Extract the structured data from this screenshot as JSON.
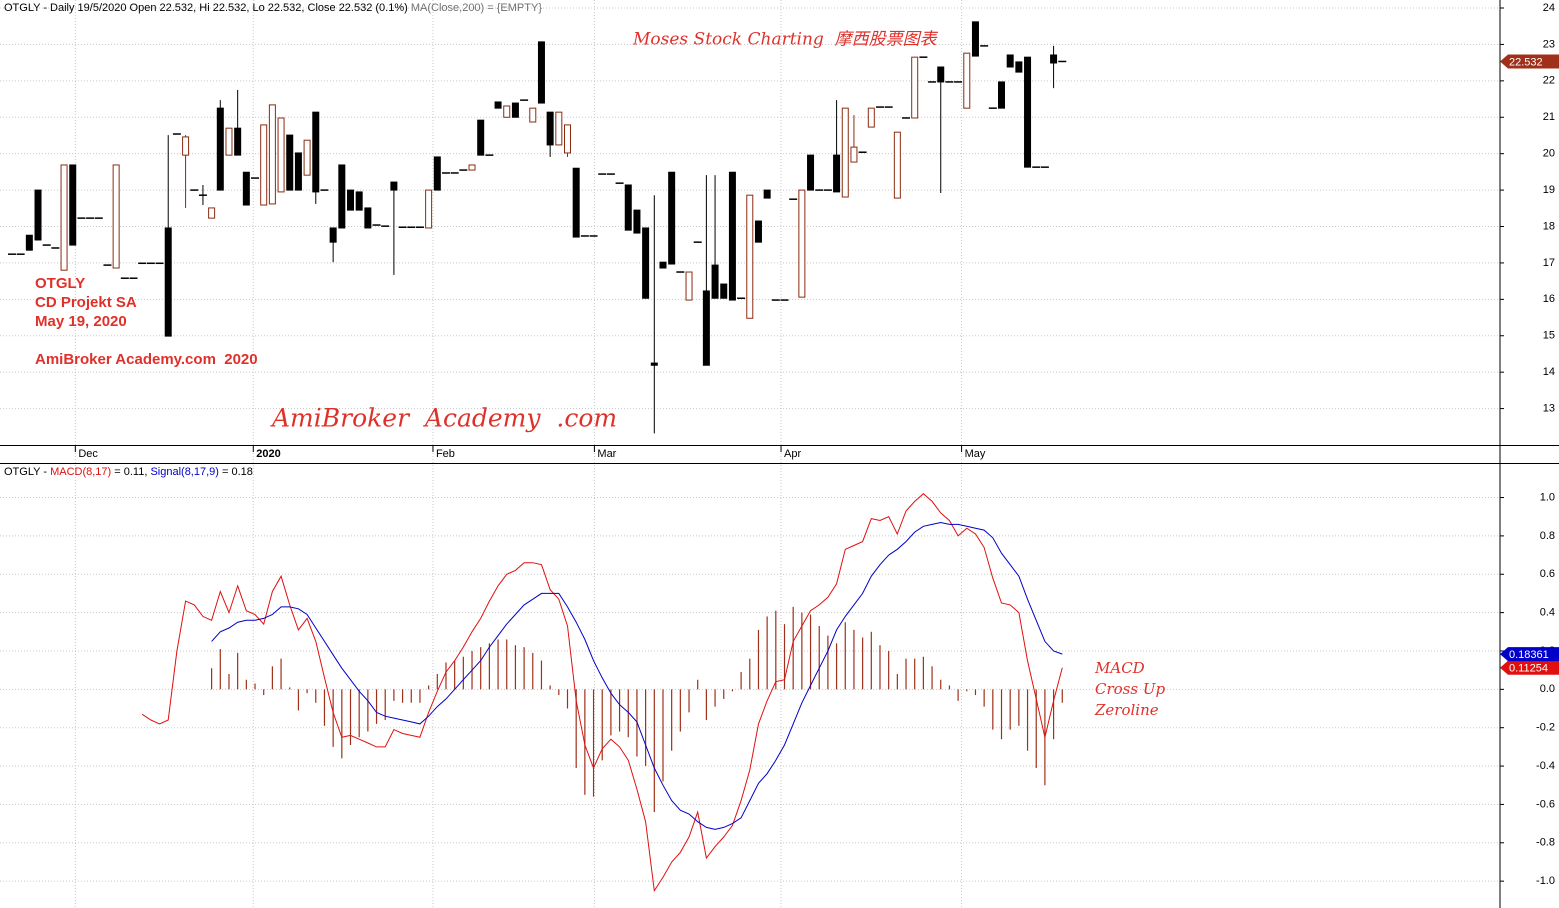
{
  "chart_data": [
    {
      "type": "candlestick",
      "title": "OTGLY - Daily 19/5/2020 Open 22.532, Hi 22.532, Lo 22.532, Close 22.532 (0.1%)",
      "subtitle": "MA(Close,200) = {EMPTY}",
      "annotations": [
        "Moses Stock Charting  摩西股票图表",
        "OTGLY",
        "CD Projekt SA",
        "May 19, 2020",
        "AmiBroker Academy.com  2020",
        "AmiBroker  Academy  .com"
      ],
      "up_color": "#8b2b10",
      "down_color": "#000000",
      "label_color": "#a0301a",
      "xlim": [
        -1.38,
        171.43
      ],
      "xticks": [
        {
          "value": 7.3,
          "label": "Dec"
        },
        {
          "value": 27.8,
          "label": "2020"
        },
        {
          "value": 48.5,
          "label": "Feb"
        },
        {
          "value": 67.1,
          "label": "Mar"
        },
        {
          "value": 88.6,
          "label": "Apr"
        },
        {
          "value": 109.4,
          "label": "May"
        }
      ],
      "ylim": [
        12,
        24.22
      ],
      "yticks": [
        13,
        14,
        15,
        16,
        17,
        18,
        19,
        20,
        21,
        22,
        23,
        24
      ],
      "grid": true,
      "open": [
        17.24,
        17.24,
        17.76,
        19.0,
        17.49,
        17.41,
        16.8,
        19.69,
        18.23,
        18.23,
        18.23,
        16.94,
        16.86,
        16.58,
        16.58,
        16.99,
        16.99,
        16.99,
        17.96,
        20.54,
        19.96,
        19.0,
        18.86,
        18.23,
        21.25,
        19.96,
        20.7,
        19.49,
        19.33,
        18.59,
        18.62,
        18.95,
        20.51,
        20.02,
        19.41,
        21.14,
        19.0,
        17.96,
        19.69,
        19.0,
        18.95,
        18.51,
        18.04,
        18.01,
        19.22,
        17.98,
        17.98,
        17.98,
        17.96,
        19.91,
        19.47,
        19.47,
        19.55,
        19.55,
        20.92,
        19.96,
        21.42,
        21.0,
        21.39,
        21.47,
        20.87,
        23.07,
        21.14,
        20.24,
        20.02,
        19.6,
        17.74,
        17.74,
        19.44,
        19.44,
        19.19,
        19.14,
        18.45,
        17.96,
        14.25,
        17.02,
        19.49,
        16.75,
        15.98,
        17.57,
        16.23,
        16.94,
        16.42,
        19.49,
        16.03,
        15.48,
        18.15,
        19.0,
        15.98,
        15.98,
        18.75,
        16.06,
        19.96,
        19.0,
        19.0,
        19.96,
        18.81,
        19.77,
        20.04,
        20.73,
        21.28,
        21.28,
        18.78,
        20.98,
        20.98,
        22.65,
        21.97,
        22.38,
        21.97,
        21.97,
        21.25,
        23.62,
        22.96,
        21.25,
        21.97,
        22.71,
        22.52,
        22.65,
        19.63,
        19.63,
        22.71,
        22.532
      ],
      "high": [
        17.24,
        17.24,
        17.76,
        19.0,
        17.49,
        17.41,
        19.69,
        19.69,
        18.23,
        18.23,
        18.23,
        16.94,
        19.69,
        16.58,
        16.58,
        16.99,
        16.99,
        16.99,
        20.51,
        20.54,
        20.51,
        19.0,
        19.14,
        18.51,
        21.47,
        20.7,
        21.75,
        19.49,
        19.33,
        20.79,
        21.34,
        20.98,
        20.51,
        20.02,
        20.37,
        21.14,
        19.0,
        17.96,
        19.69,
        19.0,
        18.95,
        18.51,
        18.04,
        18.01,
        19.22,
        17.98,
        17.98,
        17.98,
        19.0,
        19.91,
        19.47,
        19.47,
        19.55,
        19.69,
        20.92,
        19.96,
        21.42,
        21.31,
        21.39,
        21.47,
        21.25,
        23.07,
        21.14,
        21.14,
        20.79,
        19.6,
        17.74,
        17.74,
        19.44,
        19.44,
        19.19,
        19.14,
        18.45,
        17.96,
        18.86,
        17.02,
        19.49,
        16.75,
        16.75,
        17.57,
        19.41,
        19.41,
        16.42,
        19.49,
        16.03,
        18.86,
        18.15,
        19.0,
        15.98,
        15.98,
        18.75,
        19.0,
        19.96,
        19.0,
        19.0,
        21.47,
        21.25,
        21.06,
        20.04,
        21.25,
        21.28,
        21.28,
        20.59,
        20.98,
        22.65,
        22.65,
        21.97,
        22.38,
        21.97,
        21.97,
        22.76,
        23.62,
        22.96,
        21.25,
        21.97,
        22.71,
        22.52,
        22.65,
        19.63,
        19.63,
        22.96,
        22.532
      ],
      "low": [
        17.24,
        17.24,
        17.35,
        17.63,
        17.49,
        17.41,
        16.8,
        17.49,
        18.23,
        18.23,
        18.23,
        16.94,
        16.86,
        16.58,
        16.58,
        16.99,
        16.99,
        16.99,
        14.99,
        20.54,
        18.51,
        19.0,
        18.59,
        18.23,
        19.0,
        19.96,
        19.96,
        18.59,
        19.33,
        18.59,
        18.62,
        18.95,
        19.0,
        19.0,
        19.41,
        18.62,
        19.0,
        17.02,
        17.96,
        18.45,
        18.45,
        17.96,
        18.04,
        18.01,
        16.67,
        17.98,
        17.98,
        17.98,
        17.96,
        19.0,
        19.47,
        19.47,
        19.55,
        19.55,
        19.96,
        19.96,
        21.25,
        21.0,
        21.0,
        21.47,
        20.87,
        21.39,
        19.91,
        20.24,
        19.91,
        17.71,
        17.74,
        17.74,
        19.44,
        19.44,
        19.19,
        17.9,
        17.82,
        16.03,
        12.32,
        16.86,
        16.97,
        16.75,
        15.98,
        17.57,
        14.19,
        16.03,
        16.03,
        15.98,
        16.03,
        15.48,
        17.57,
        18.78,
        15.98,
        15.98,
        18.75,
        16.06,
        19.0,
        19.0,
        19.0,
        18.95,
        18.81,
        19.77,
        20.04,
        20.73,
        21.28,
        21.28,
        18.78,
        20.98,
        20.98,
        22.65,
        21.97,
        18.92,
        21.97,
        21.97,
        21.25,
        22.68,
        22.96,
        21.25,
        21.25,
        22.38,
        22.24,
        19.63,
        19.63,
        19.63,
        21.8,
        22.532
      ],
      "close": [
        17.24,
        17.24,
        17.35,
        17.63,
        17.49,
        17.41,
        19.69,
        17.49,
        18.23,
        18.23,
        18.23,
        16.94,
        19.69,
        16.58,
        16.58,
        16.99,
        16.99,
        16.99,
        14.99,
        20.54,
        20.46,
        19.0,
        18.86,
        18.51,
        19.0,
        20.7,
        19.96,
        18.59,
        19.33,
        20.79,
        21.34,
        20.98,
        19.0,
        19.0,
        20.37,
        18.95,
        19.0,
        17.57,
        17.96,
        18.45,
        18.45,
        17.96,
        18.04,
        18.01,
        19.0,
        17.98,
        17.98,
        17.98,
        19.0,
        19.0,
        19.47,
        19.47,
        19.55,
        19.69,
        19.96,
        19.96,
        21.25,
        21.31,
        21.0,
        21.47,
        21.25,
        21.39,
        20.24,
        21.14,
        20.79,
        17.71,
        17.74,
        17.74,
        19.44,
        19.44,
        19.19,
        17.9,
        17.82,
        16.03,
        14.19,
        16.86,
        16.97,
        16.75,
        16.75,
        17.57,
        14.19,
        16.03,
        16.03,
        15.98,
        16.03,
        18.86,
        17.57,
        18.78,
        15.98,
        15.98,
        18.75,
        19.0,
        19.0,
        19.0,
        19.0,
        18.95,
        21.25,
        20.18,
        20.04,
        21.25,
        21.28,
        21.28,
        20.59,
        20.98,
        22.65,
        22.65,
        21.97,
        21.97,
        21.97,
        21.97,
        22.76,
        22.68,
        22.96,
        21.25,
        21.25,
        22.38,
        22.24,
        19.63,
        19.63,
        19.63,
        22.49,
        22.532
      ]
    },
    {
      "type": "line",
      "title": "OTGLY -",
      "annotations": [
        "MACD",
        "Cross Up",
        "Zeroline"
      ],
      "xlim": [
        -1.38,
        171.43
      ],
      "ylim": [
        -1.14,
        1.18
      ],
      "yticks": [
        {
          "value": -1.0,
          "label": "-1.0"
        },
        -0.8,
        -0.6,
        -0.4,
        -0.2,
        {
          "value": 0.0,
          "label": "0.0"
        },
        0.2,
        0.4,
        0.6,
        0.8,
        {
          "value": 1.0,
          "label": "1.0"
        }
      ],
      "grid": true,
      "series": [
        {
          "name": "MACD(8,17)",
          "legend_value": "= 0.11,",
          "color": "#e01010",
          "values": [
            null,
            null,
            null,
            null,
            null,
            null,
            null,
            null,
            null,
            null,
            null,
            null,
            null,
            null,
            null,
            -0.13,
            -0.16,
            -0.18,
            -0.16,
            0.2,
            0.46,
            0.44,
            0.38,
            0.36,
            0.51,
            0.4,
            0.54,
            0.41,
            0.39,
            0.34,
            0.51,
            0.59,
            0.44,
            0.31,
            0.37,
            0.25,
            0.06,
            -0.12,
            -0.25,
            -0.24,
            -0.26,
            -0.28,
            -0.3,
            -0.3,
            -0.21,
            -0.23,
            -0.24,
            -0.25,
            -0.12,
            -0.01,
            0.09,
            0.15,
            0.22,
            0.3,
            0.37,
            0.46,
            0.54,
            0.6,
            0.62,
            0.66,
            0.66,
            0.65,
            0.52,
            0.47,
            0.33,
            -0.06,
            -0.29,
            -0.41,
            -0.31,
            -0.26,
            -0.3,
            -0.37,
            -0.52,
            -0.69,
            -1.05,
            -0.98,
            -0.9,
            -0.85,
            -0.77,
            -0.64,
            -0.88,
            -0.82,
            -0.77,
            -0.71,
            -0.58,
            -0.42,
            -0.18,
            -0.06,
            0.04,
            0.05,
            0.25,
            0.33,
            0.41,
            0.44,
            0.48,
            0.55,
            0.73,
            0.75,
            0.77,
            0.89,
            0.88,
            0.9,
            0.81,
            0.93,
            0.98,
            1.02,
            0.98,
            0.92,
            0.88,
            0.8,
            0.84,
            0.81,
            0.74,
            0.58,
            0.45,
            0.44,
            0.4,
            0.15,
            -0.05,
            -0.25,
            -0.06,
            0.11254
          ]
        },
        {
          "name": "Signal(8,17,9)",
          "legend_value": "= 0.18",
          "color": "#0000c8",
          "values": [
            null,
            null,
            null,
            null,
            null,
            null,
            null,
            null,
            null,
            null,
            null,
            null,
            null,
            null,
            null,
            null,
            null,
            null,
            null,
            null,
            null,
            null,
            null,
            0.25,
            0.3,
            0.32,
            0.35,
            0.36,
            0.36,
            0.37,
            0.39,
            0.43,
            0.43,
            0.42,
            0.39,
            0.32,
            0.25,
            0.18,
            0.11,
            0.05,
            -0.01,
            -0.06,
            -0.12,
            -0.14,
            -0.15,
            -0.16,
            -0.17,
            -0.18,
            -0.14,
            -0.09,
            -0.05,
            0.0,
            0.05,
            0.1,
            0.15,
            0.22,
            0.28,
            0.34,
            0.39,
            0.44,
            0.47,
            0.5,
            0.5,
            0.5,
            0.43,
            0.35,
            0.26,
            0.15,
            0.06,
            -0.02,
            -0.08,
            -0.12,
            -0.17,
            -0.29,
            -0.41,
            -0.5,
            -0.58,
            -0.63,
            -0.65,
            -0.69,
            -0.72,
            -0.73,
            -0.72,
            -0.7,
            -0.67,
            -0.58,
            -0.49,
            -0.44,
            -0.37,
            -0.29,
            -0.18,
            -0.07,
            0.02,
            0.11,
            0.2,
            0.31,
            0.38,
            0.44,
            0.5,
            0.59,
            0.65,
            0.7,
            0.73,
            0.77,
            0.82,
            0.85,
            0.86,
            0.87,
            0.86,
            0.86,
            0.85,
            0.84,
            0.83,
            0.79,
            0.71,
            0.65,
            0.59,
            0.47,
            0.36,
            0.25,
            0.2,
            0.18361
          ]
        }
      ],
      "histogram": {
        "color": "#a0301a",
        "values": [
          null,
          null,
          null,
          null,
          null,
          null,
          null,
          null,
          null,
          null,
          null,
          null,
          null,
          null,
          null,
          null,
          null,
          null,
          null,
          null,
          null,
          null,
          null,
          0.11,
          0.21,
          0.08,
          0.19,
          0.05,
          0.03,
          -0.03,
          0.12,
          0.16,
          0.01,
          -0.11,
          -0.02,
          -0.07,
          -0.19,
          -0.3,
          -0.36,
          -0.29,
          -0.25,
          -0.22,
          -0.18,
          -0.16,
          -0.06,
          -0.07,
          -0.07,
          -0.07,
          0.02,
          0.08,
          0.14,
          0.15,
          0.17,
          0.2,
          0.22,
          0.24,
          0.26,
          0.26,
          0.23,
          0.22,
          0.19,
          0.15,
          0.02,
          -0.03,
          -0.1,
          -0.41,
          -0.55,
          -0.56,
          -0.37,
          -0.24,
          -0.22,
          -0.25,
          -0.35,
          -0.4,
          -0.64,
          -0.48,
          -0.32,
          -0.22,
          -0.12,
          0.05,
          -0.16,
          -0.09,
          -0.05,
          -0.01,
          0.09,
          0.16,
          0.31,
          0.38,
          0.41,
          0.34,
          0.43,
          0.4,
          0.39,
          0.33,
          0.28,
          0.24,
          0.35,
          0.31,
          0.27,
          0.3,
          0.23,
          0.2,
          0.08,
          0.16,
          0.16,
          0.17,
          0.12,
          0.05,
          0.02,
          -0.06,
          -0.01,
          -0.03,
          -0.09,
          -0.21,
          -0.26,
          -0.21,
          -0.19,
          -0.32,
          -0.41,
          -0.5,
          -0.26,
          -0.07
        ]
      }
    }
  ]
}
